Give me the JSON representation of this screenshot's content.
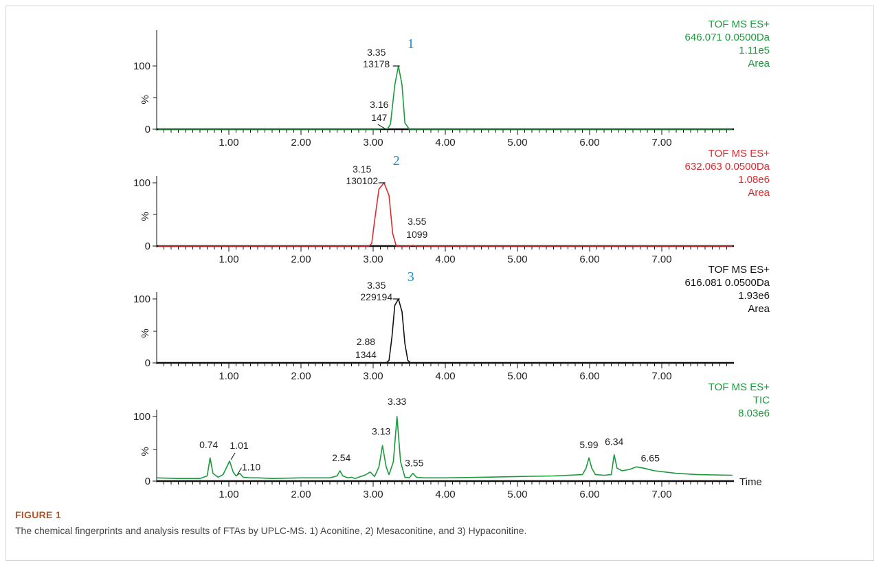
{
  "chart_data": [
    {
      "type": "line",
      "color": "#1a9a3a",
      "xlim": [
        0,
        8.0
      ],
      "ylim": [
        0,
        100
      ],
      "x_ticks": [
        "1.00",
        "2.00",
        "3.00",
        "4.00",
        "5.00",
        "6.00",
        "7.00"
      ],
      "y_ticks": [
        "100",
        "0"
      ],
      "ylabel": "%",
      "info": [
        "TOF MS ES+",
        "646.071 0.0500Da",
        "1.11e5",
        "Area"
      ],
      "peak_number": "1",
      "series": [
        {
          "x": [
            0.02,
            3.05,
            3.1,
            3.16,
            3.2,
            3.24,
            3.3,
            3.35,
            3.4,
            3.44,
            3.5,
            7.98
          ],
          "y": [
            0,
            0,
            0.5,
            1.2,
            0.5,
            8,
            70,
            100,
            70,
            10,
            0,
            0
          ]
        }
      ],
      "annotations": [
        {
          "x": 3.35,
          "y": 100,
          "time": "3.35",
          "area": "13178"
        },
        {
          "x": 3.16,
          "y": 1.2,
          "time": "3.16",
          "area": "147"
        }
      ]
    },
    {
      "type": "line",
      "color": "#e0282d",
      "xlim": [
        0,
        8.0
      ],
      "ylim": [
        0,
        100
      ],
      "x_ticks": [
        "1.00",
        "2.00",
        "3.00",
        "4.00",
        "5.00",
        "6.00",
        "7.00"
      ],
      "y_ticks": [
        "100",
        "0"
      ],
      "ylabel": "%",
      "info": [
        "TOF MS ES+",
        "632.063 0.0500Da",
        "1.08e6",
        "Area"
      ],
      "peak_number": "2",
      "series": [
        {
          "x": [
            0.02,
            2.94,
            2.98,
            3.02,
            3.08,
            3.15,
            3.22,
            3.27,
            3.32,
            3.5,
            3.55,
            3.6,
            7.98
          ],
          "y": [
            0,
            0,
            4,
            40,
            90,
            100,
            80,
            20,
            0,
            0,
            1,
            0,
            0
          ]
        }
      ],
      "annotations": [
        {
          "x": 3.15,
          "y": 100,
          "time": "3.15",
          "area": "130102"
        },
        {
          "x": 3.55,
          "y": 1,
          "time": "3.55",
          "area": "1099"
        }
      ]
    },
    {
      "type": "line",
      "color": "#111111",
      "xlim": [
        0,
        8.0
      ],
      "ylim": [
        0,
        100
      ],
      "x_ticks": [
        "1.00",
        "2.00",
        "3.00",
        "4.00",
        "5.00",
        "6.00",
        "7.00"
      ],
      "y_ticks": [
        "100",
        "0"
      ],
      "ylabel": "%",
      "info": [
        "TOF MS ES+",
        "616.081 0.0500Da",
        "1.93e6",
        "Area"
      ],
      "peak_number": "3",
      "series": [
        {
          "x": [
            0.02,
            3.18,
            3.22,
            3.26,
            3.3,
            3.35,
            3.4,
            3.44,
            3.48,
            3.52,
            7.98
          ],
          "y": [
            0,
            0,
            4,
            40,
            90,
            100,
            80,
            30,
            4,
            0,
            0
          ]
        }
      ],
      "annotations": [
        {
          "x": 3.35,
          "y": 100,
          "time": "3.35",
          "area": "229194"
        },
        {
          "x": 2.88,
          "y": 0,
          "time": "2.88",
          "area": "1344"
        }
      ]
    },
    {
      "type": "line",
      "color": "#1a9a3a",
      "xlim": [
        0,
        8.0
      ],
      "ylim": [
        0,
        100
      ],
      "x_ticks": [
        "1.00",
        "2.00",
        "3.00",
        "4.00",
        "5.00",
        "6.00",
        "7.00"
      ],
      "y_ticks": [
        "100",
        "0"
      ],
      "ylabel": "%",
      "xlabel": "Time",
      "info": [
        "TOF MS ES+",
        "TIC",
        "8.03e6"
      ],
      "series": [
        {
          "x": [
            0.0,
            0.3,
            0.6,
            0.7,
            0.74,
            0.78,
            0.85,
            0.92,
            1.01,
            1.06,
            1.1,
            1.15,
            1.2,
            1.3,
            1.4,
            1.6,
            2.0,
            2.4,
            2.5,
            2.54,
            2.58,
            2.65,
            2.7,
            2.75,
            2.8,
            2.85,
            2.9,
            2.96,
            3.02,
            3.08,
            3.13,
            3.18,
            3.22,
            3.28,
            3.33,
            3.38,
            3.44,
            3.5,
            3.55,
            3.6,
            3.7,
            4.0,
            4.5,
            5.0,
            5.5,
            5.9,
            5.95,
            5.99,
            6.03,
            6.08,
            6.2,
            6.3,
            6.34,
            6.38,
            6.45,
            6.55,
            6.65,
            6.75,
            6.9,
            7.2,
            7.5,
            7.98
          ],
          "y": [
            5,
            4,
            4,
            8,
            36,
            12,
            6,
            10,
            31,
            14,
            8,
            12,
            6,
            5,
            5,
            4,
            5,
            5,
            8,
            16,
            8,
            5,
            6,
            4,
            6,
            8,
            10,
            14,
            7,
            22,
            55,
            22,
            10,
            30,
            100,
            30,
            6,
            5,
            12,
            6,
            5,
            5,
            6,
            7,
            8,
            10,
            20,
            36,
            20,
            10,
            9,
            10,
            41,
            20,
            16,
            18,
            22,
            20,
            16,
            12,
            10,
            9
          ]
        }
      ],
      "annotations": [
        {
          "x": 0.74,
          "y": 36,
          "time": "0.74"
        },
        {
          "x": 1.01,
          "y": 31,
          "time": "1.01"
        },
        {
          "x": 1.1,
          "y": 8,
          "time": "1.10"
        },
        {
          "x": 2.54,
          "y": 16,
          "time": "2.54"
        },
        {
          "x": 3.13,
          "y": 55,
          "time": "3.13"
        },
        {
          "x": 3.33,
          "y": 100,
          "time": "3.33"
        },
        {
          "x": 3.55,
          "y": 12,
          "time": "3.55"
        },
        {
          "x": 5.99,
          "y": 36,
          "time": "5.99"
        },
        {
          "x": 6.34,
          "y": 41,
          "time": "6.34"
        },
        {
          "x": 6.65,
          "y": 22,
          "time": "6.65"
        }
      ]
    }
  ],
  "style": {
    "peak_number_color": "#1f8fd1",
    "axis_color": "#111111"
  },
  "caption": {
    "title": "FIGURE 1",
    "text": "The chemical fingerprints and analysis results of FTAs by UPLC-MS. 1) Aconitine, 2) Mesaconitine, and 3) Hypaconitine."
  }
}
